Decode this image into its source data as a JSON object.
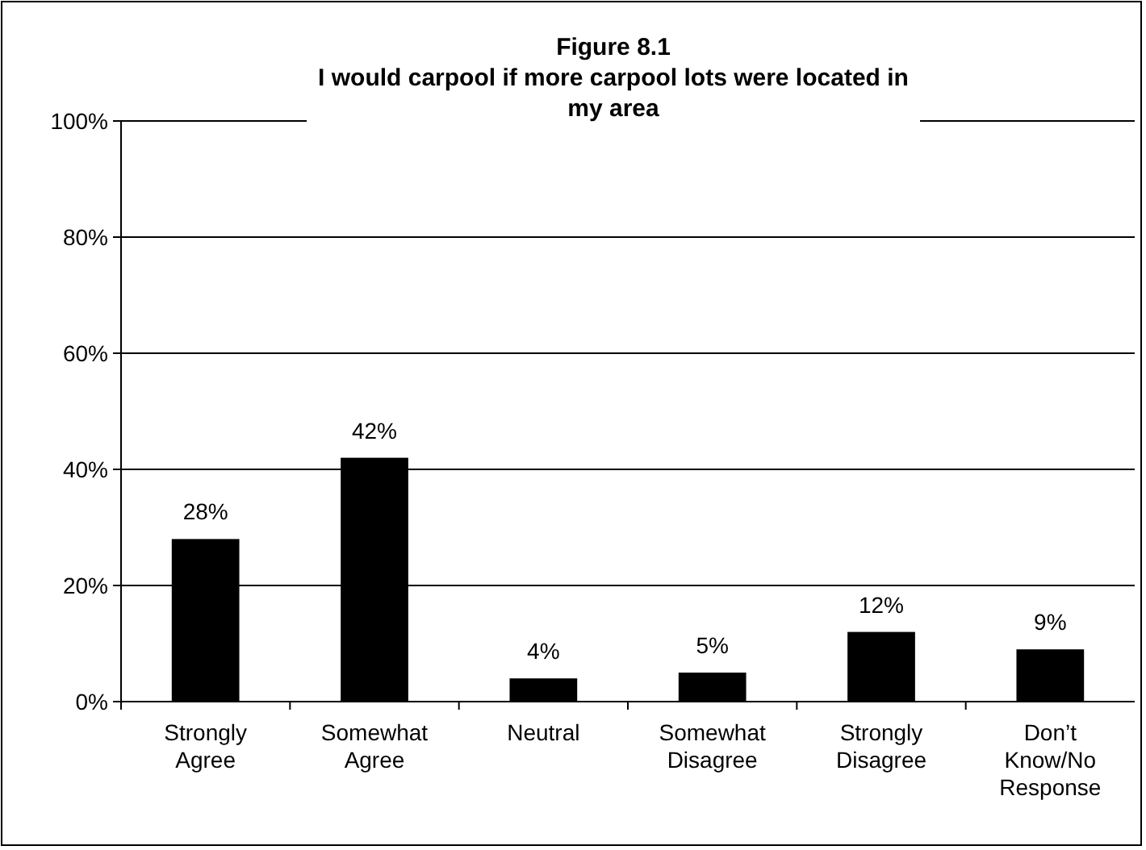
{
  "chart_data": {
    "type": "bar",
    "title": "Figure 8.1",
    "subtitle": "I would carpool if more carpool lots were located in my area",
    "categories": [
      "Strongly Agree",
      "Somewhat Agree",
      "Neutral",
      "Somewhat Disagree",
      "Strongly Disagree",
      "Don’t Know/No Response"
    ],
    "values": [
      28,
      42,
      4,
      5,
      12,
      9
    ],
    "color": "#000000",
    "value_labels": [
      "28%",
      "42%",
      "4%",
      "5%",
      "12%",
      "9%"
    ],
    "ylim": [
      0,
      100
    ],
    "yticks": [
      {
        "value": 0,
        "label": "0%"
      },
      {
        "value": 20,
        "label": "20%"
      },
      {
        "value": 40,
        "label": "40%"
      },
      {
        "value": 60,
        "label": "60%"
      },
      {
        "value": 80,
        "label": "80%"
      },
      {
        "value": 100,
        "label": "100%"
      }
    ],
    "grid": "y"
  }
}
